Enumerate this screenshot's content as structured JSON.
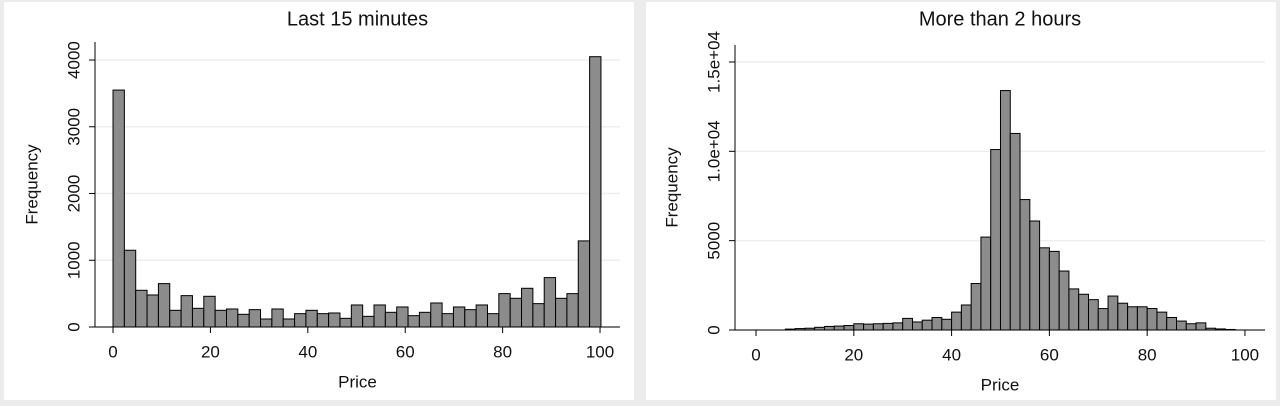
{
  "chart_data": [
    {
      "type": "histogram",
      "title": "Last 15 minutes",
      "x_label": "Price",
      "y_label": "Frequency",
      "bins": [
        0,
        2.33,
        4.66,
        6.99,
        9.32,
        11.65,
        13.98,
        16.31,
        18.64,
        20.97,
        23.3,
        25.63,
        27.96,
        30.29,
        32.62,
        34.95,
        37.28,
        39.61,
        41.94,
        44.27,
        46.6,
        48.93,
        51.26,
        53.59,
        55.92,
        58.25,
        60.58,
        62.91,
        65.24,
        67.57,
        69.9,
        72.23,
        74.56,
        76.89,
        79.22,
        81.55,
        83.88,
        86.21,
        88.54,
        90.87,
        93.2,
        95.53,
        97.86,
        100.19
      ],
      "values": [
        3550,
        1150,
        550,
        480,
        650,
        250,
        470,
        280,
        460,
        250,
        270,
        190,
        260,
        120,
        270,
        120,
        200,
        250,
        200,
        210,
        130,
        330,
        160,
        330,
        220,
        300,
        170,
        220,
        360,
        200,
        300,
        260,
        330,
        200,
        500,
        430,
        580,
        350,
        740,
        430,
        500,
        1290,
        4050
      ],
      "color": "#8c8c8c",
      "xlim": [
        -3.7,
        104.1
      ],
      "xticks": [
        0,
        20,
        40,
        60,
        80,
        100
      ],
      "ylim": [
        0,
        4270
      ],
      "yticks": [
        0,
        1000,
        2000,
        3000,
        4000
      ],
      "grid": true
    },
    {
      "type": "histogram",
      "title": "More than 2 hours",
      "x_label": "Price",
      "y_label": "Frequency",
      "bins": [
        6,
        8,
        10,
        12,
        14,
        16,
        18,
        20,
        22,
        24,
        26,
        28,
        30,
        32,
        34,
        36,
        38,
        40,
        42,
        44,
        46,
        48,
        50,
        52,
        54,
        56,
        58,
        60,
        62,
        64,
        66,
        68,
        70,
        72,
        74,
        76,
        78,
        80,
        82,
        84,
        86,
        88,
        90,
        92,
        94,
        96,
        98
      ],
      "values": [
        50,
        80,
        100,
        150,
        200,
        220,
        250,
        350,
        330,
        350,
        370,
        400,
        650,
        450,
        550,
        700,
        600,
        1000,
        1400,
        2600,
        5200,
        10100,
        13400,
        11000,
        7300,
        6100,
        4600,
        4400,
        3300,
        2300,
        2000,
        1700,
        1200,
        1900,
        1500,
        1300,
        1300,
        1200,
        1000,
        700,
        500,
        350,
        400,
        100,
        60,
        30
      ],
      "color": "#8c8c8c",
      "xlim": [
        -4.3,
        104.1
      ],
      "xticks": [
        0,
        20,
        40,
        60,
        80,
        100
      ],
      "ylim": [
        0,
        15950
      ],
      "yticks": [
        0,
        5000,
        {
          "value": 10000,
          "label": "1.0e+04"
        },
        {
          "value": 15000,
          "label": "1.5e+04"
        }
      ],
      "grid": true
    }
  ]
}
